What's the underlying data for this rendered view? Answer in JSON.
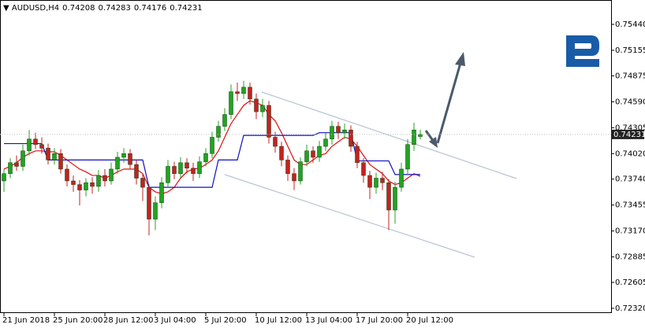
{
  "chart_data": {
    "type": "candlestick",
    "symbol": "AUDUSD,H4",
    "categories": [
      "21 Jun 2018",
      null,
      null,
      null,
      null,
      null,
      null,
      null,
      "25 Jun 20:00",
      null,
      null,
      null,
      null,
      null,
      null,
      null,
      "28 Jun 12:00",
      null,
      null,
      null,
      null,
      null,
      null,
      null,
      "3 Jul 04:00",
      null,
      null,
      null,
      null,
      null,
      null,
      null,
      "5 Jul 20:00",
      null,
      null,
      null,
      null,
      null,
      null,
      null,
      "10 Jul 12:00",
      null,
      null,
      null,
      null,
      null,
      null,
      null,
      "13 Jul 04:00",
      null,
      null,
      null,
      null,
      null,
      null,
      null,
      "17 Jul 20:00",
      null,
      null,
      null,
      null,
      null,
      null,
      null,
      "20 Jul 12:00",
      null,
      null
    ],
    "open": [
      0.7372,
      0.738,
      0.7392,
      0.7388,
      0.7405,
      0.7418,
      0.7412,
      0.7408,
      0.7395,
      0.7402,
      0.7385,
      0.7372,
      0.7368,
      0.7362,
      0.737,
      0.7366,
      0.7378,
      0.7372,
      0.7385,
      0.7398,
      0.7402,
      0.739,
      0.7375,
      0.7365,
      0.733,
      0.7348,
      0.737,
      0.7388,
      0.738,
      0.7392,
      0.7386,
      0.738,
      0.7393,
      0.7402,
      0.742,
      0.7432,
      0.7445,
      0.747,
      0.7468,
      0.7475,
      0.7462,
      0.7448,
      0.7455,
      0.742,
      0.741,
      0.7395,
      0.738,
      0.7372,
      0.7393,
      0.7405,
      0.7398,
      0.741,
      0.7418,
      0.7432,
      0.7425,
      0.7428,
      0.741,
      0.7392,
      0.7378,
      0.7365,
      0.7375,
      0.737,
      0.734,
      0.7365,
      0.7385,
      0.7412,
      0.74208
    ],
    "high": [
      0.7385,
      0.7397,
      0.74,
      0.7412,
      0.7428,
      0.7425,
      0.742,
      0.7413,
      0.7408,
      0.7407,
      0.739,
      0.7378,
      0.7373,
      0.7375,
      0.7376,
      0.7384,
      0.7385,
      0.7392,
      0.7404,
      0.7408,
      0.7407,
      0.7395,
      0.738,
      0.7368,
      0.7355,
      0.7376,
      0.7395,
      0.7393,
      0.7398,
      0.7397,
      0.7392,
      0.7399,
      0.7408,
      0.7426,
      0.7438,
      0.7452,
      0.7478,
      0.748,
      0.7482,
      0.748,
      0.7468,
      0.7462,
      0.746,
      0.7426,
      0.7415,
      0.74,
      0.7386,
      0.7398,
      0.7412,
      0.741,
      0.7416,
      0.7425,
      0.7438,
      0.7437,
      0.7435,
      0.7433,
      0.7415,
      0.7397,
      0.7383,
      0.7381,
      0.7382,
      0.7374,
      0.7371,
      0.7392,
      0.7418,
      0.7436,
      0.74283
    ],
    "low": [
      0.736,
      0.7375,
      0.7383,
      0.7383,
      0.74,
      0.7407,
      0.7402,
      0.739,
      0.739,
      0.738,
      0.7366,
      0.736,
      0.7345,
      0.7355,
      0.7358,
      0.736,
      0.7366,
      0.7368,
      0.738,
      0.7392,
      0.7385,
      0.7368,
      0.735,
      0.7312,
      0.7318,
      0.7342,
      0.7365,
      0.7374,
      0.7375,
      0.738,
      0.7372,
      0.7375,
      0.7388,
      0.7397,
      0.7415,
      0.7427,
      0.744,
      0.746,
      0.7462,
      0.7456,
      0.744,
      0.7442,
      0.7413,
      0.7403,
      0.7388,
      0.7372,
      0.7362,
      0.7368,
      0.7388,
      0.7392,
      0.7393,
      0.7405,
      0.7412,
      0.7418,
      0.7418,
      0.7404,
      0.7386,
      0.737,
      0.7352,
      0.7358,
      0.7362,
      0.7318,
      0.7325,
      0.736,
      0.738,
      0.7405,
      0.74176
    ],
    "close": [
      0.738,
      0.7392,
      0.7388,
      0.7405,
      0.7418,
      0.7412,
      0.7408,
      0.7395,
      0.7402,
      0.7385,
      0.7372,
      0.7368,
      0.7362,
      0.737,
      0.7366,
      0.7378,
      0.7372,
      0.7385,
      0.7398,
      0.7402,
      0.739,
      0.7375,
      0.7365,
      0.733,
      0.7348,
      0.737,
      0.7388,
      0.738,
      0.7392,
      0.7386,
      0.738,
      0.7393,
      0.7402,
      0.742,
      0.7432,
      0.7445,
      0.747,
      0.7468,
      0.7475,
      0.7462,
      0.7448,
      0.7455,
      0.742,
      0.741,
      0.7395,
      0.738,
      0.7372,
      0.7393,
      0.7405,
      0.7398,
      0.741,
      0.7418,
      0.7432,
      0.7425,
      0.7428,
      0.741,
      0.7392,
      0.7378,
      0.7365,
      0.7375,
      0.737,
      0.734,
      0.7365,
      0.7385,
      0.7412,
      0.7428,
      0.74231
    ],
    "up_color": "#22a322",
    "down_color": "#c62020",
    "series": [
      {
        "color": "#e01010",
        "values": [
          0.7385,
          0.7388,
          0.7392,
          0.7398,
          0.7402,
          0.7405,
          0.7405,
          0.7404,
          0.7404,
          0.74,
          0.7395,
          0.739,
          0.7385,
          0.7382,
          0.7378,
          0.7378,
          0.7375,
          0.7378,
          0.7382,
          0.7385,
          0.7385,
          0.7385,
          0.738,
          0.7365,
          0.736,
          0.7358,
          0.736,
          0.7365,
          0.7375,
          0.7382,
          0.7385,
          0.7386,
          0.739,
          0.7395,
          0.7405,
          0.742,
          0.7435,
          0.7445,
          0.7455,
          0.746,
          0.7458,
          0.7455,
          0.7445,
          0.7438,
          0.7425,
          0.741,
          0.7395,
          0.739,
          0.739,
          0.7395,
          0.74,
          0.7402,
          0.741,
          0.7415,
          0.742,
          0.7418,
          0.741,
          0.74,
          0.739,
          0.7385,
          0.738,
          0.7372,
          0.7368,
          0.737,
          0.7375,
          0.738,
          0.7377
        ]
      },
      {
        "color": "#1010c0",
        "values": [
          0.7413,
          0.7413,
          0.7413,
          0.7413,
          0.7413,
          0.7413,
          0.7413,
          0.7395,
          0.7395,
          0.7395,
          0.7395,
          0.7395,
          0.7395,
          0.7395,
          0.7395,
          0.7395,
          0.7395,
          0.7395,
          0.7395,
          0.7395,
          0.7395,
          0.7395,
          0.7395,
          0.7365,
          0.7365,
          0.7365,
          0.7365,
          0.7365,
          0.7365,
          0.7365,
          0.7365,
          0.7365,
          0.7365,
          0.7365,
          0.7395,
          0.7395,
          0.7395,
          0.7395,
          0.7422,
          0.7422,
          0.7422,
          0.7422,
          0.7422,
          0.7422,
          0.7422,
          0.7422,
          0.7422,
          0.7422,
          0.7422,
          0.7422,
          0.7425,
          0.7425,
          0.7425,
          0.7425,
          0.7425,
          0.7425,
          0.7394,
          0.7394,
          0.7394,
          0.7394,
          0.7394,
          0.7394,
          0.7379,
          0.7379,
          0.7379,
          0.7379,
          0.7379
        ]
      }
    ],
    "ylim": [
      0.72268,
      0.75708
    ],
    "yticks": [
      {
        "value": 0.7544,
        "label": "0.75440"
      },
      {
        "value": 0.75155,
        "label": "0.75155"
      },
      {
        "value": 0.74875,
        "label": "0.74875"
      },
      {
        "value": 0.7459,
        "label": "0.74590"
      },
      {
        "value": 0.74305,
        "label": "0.74305"
      },
      {
        "value": 0.7402,
        "label": "0.74020"
      },
      {
        "value": 0.7374,
        "label": "0.73740"
      },
      {
        "value": 0.73455,
        "label": "0.73455"
      },
      {
        "value": 0.7317,
        "label": "0.73170"
      },
      {
        "value": 0.72885,
        "label": "0.72885"
      },
      {
        "value": 0.72605,
        "label": "0.72605"
      },
      {
        "value": 0.7232,
        "label": "0.72320"
      }
    ]
  }
}
